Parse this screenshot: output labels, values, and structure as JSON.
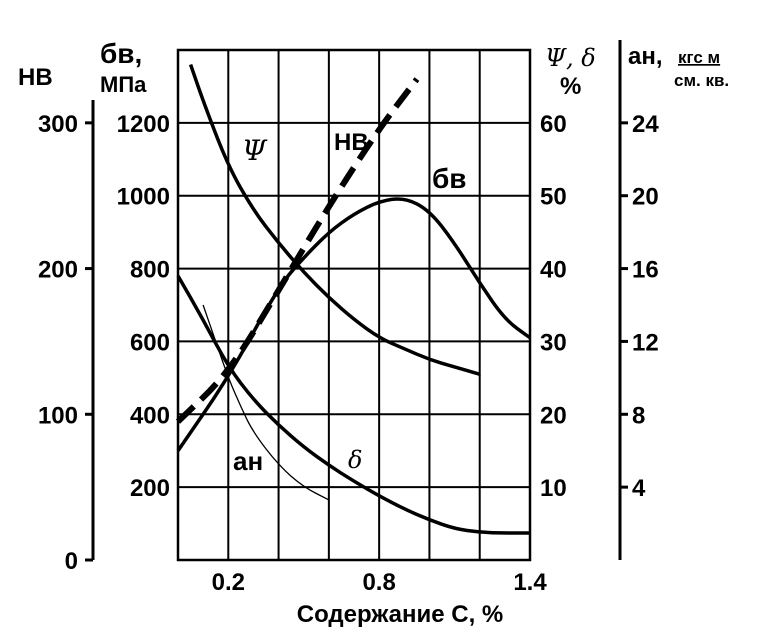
{
  "chart_data": {
    "type": "line",
    "title": "",
    "xlabel": "Содержание С, %",
    "xlim": [
      0.0,
      1.4
    ],
    "x_ticks": [
      "0.2",
      "0.8",
      "1.4"
    ],
    "grid": true,
    "axes": {
      "hb": {
        "title": "НВ",
        "ticks": [
          0,
          100,
          200,
          300
        ],
        "range": [
          0,
          350
        ]
      },
      "sigma": {
        "title_line1": "бв,",
        "title_line2": "МПа",
        "ticks": [
          200,
          400,
          600,
          800,
          1000,
          1200
        ],
        "range": [
          0,
          1400
        ]
      },
      "psi_delta": {
        "title_line1": "Ψ, δ",
        "title_line2": "%",
        "ticks": [
          10,
          20,
          30,
          40,
          50,
          60
        ],
        "range": [
          0,
          70
        ]
      },
      "an": {
        "title": "ан,",
        "unit_line1": "кгс м",
        "unit_line2": "см. кв.",
        "ticks": [
          4,
          8,
          12,
          16,
          20,
          24
        ],
        "range": [
          0,
          28
        ]
      }
    },
    "series": [
      {
        "name": "Ψ",
        "axis": "psi_delta",
        "style": "solid",
        "x": [
          0.05,
          0.1,
          0.2,
          0.3,
          0.4,
          0.5,
          0.6,
          0.7,
          0.8,
          0.9,
          1.0,
          1.1,
          1.2
        ],
        "y": [
          68,
          63,
          54,
          48,
          43.5,
          39.5,
          36,
          33,
          30.5,
          29,
          27.5,
          26.5,
          25.5
        ]
      },
      {
        "name": "δ",
        "axis": "psi_delta",
        "style": "solid",
        "x": [
          0.0,
          0.1,
          0.2,
          0.3,
          0.4,
          0.5,
          0.6,
          0.7,
          0.8,
          0.9,
          1.0,
          1.1,
          1.2,
          1.3,
          1.4
        ],
        "y": [
          39,
          33,
          26.5,
          22,
          18.5,
          15.5,
          13,
          10.8,
          8.8,
          7,
          5.5,
          4.3,
          3.8,
          3.7,
          3.7
        ]
      },
      {
        "name": "бв",
        "axis": "sigma",
        "style": "solid",
        "x": [
          0.0,
          0.2,
          0.4,
          0.5,
          0.6,
          0.7,
          0.8,
          0.9,
          1.0,
          1.1,
          1.2,
          1.3,
          1.4
        ],
        "y": [
          300,
          500,
          750,
          830,
          900,
          950,
          985,
          995,
          960,
          870,
          760,
          660,
          610
        ]
      },
      {
        "name": "НВ",
        "axis": "hb",
        "style": "dashed",
        "x": [
          0.0,
          0.2,
          0.4,
          0.6,
          0.8,
          0.95
        ],
        "y": [
          95,
          128,
          185,
          243,
          296,
          330
        ]
      },
      {
        "name": "ан",
        "axis": "an",
        "style": "thin",
        "x": [
          0.1,
          0.15,
          0.2,
          0.25,
          0.3,
          0.4,
          0.5,
          0.6
        ],
        "y": [
          14,
          12,
          10,
          8.4,
          7,
          5.2,
          4,
          3.3
        ]
      }
    ],
    "annotations": [
      "Ψ",
      "НВ",
      "бв",
      "ан",
      "δ"
    ]
  }
}
